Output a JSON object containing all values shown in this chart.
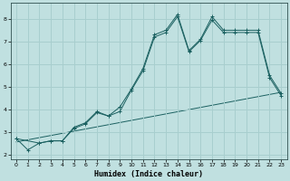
{
  "xlabel": "Humidex (Indice chaleur)",
  "bg_color": "#c0e0e0",
  "grid_color": "#a8cece",
  "line_color": "#1a6060",
  "xlim": [
    -0.5,
    23.5
  ],
  "ylim": [
    1.8,
    8.7
  ],
  "xticks": [
    0,
    1,
    2,
    3,
    4,
    5,
    6,
    7,
    8,
    9,
    10,
    11,
    12,
    13,
    14,
    15,
    16,
    17,
    18,
    19,
    20,
    21,
    22,
    23
  ],
  "yticks": [
    2,
    3,
    4,
    5,
    6,
    7,
    8
  ],
  "line1_x": [
    0,
    1,
    2,
    3,
    4,
    5,
    6,
    7,
    8,
    9,
    10,
    11,
    12,
    13,
    14,
    15,
    16,
    17,
    18,
    19,
    20,
    21,
    22,
    23
  ],
  "line1_y": [
    2.7,
    2.2,
    2.5,
    2.6,
    2.6,
    3.2,
    3.4,
    3.9,
    3.7,
    4.1,
    4.9,
    5.8,
    7.3,
    7.5,
    8.2,
    6.6,
    7.1,
    8.1,
    7.5,
    7.5,
    7.5,
    7.5,
    5.5,
    4.7
  ],
  "line2_x": [
    0,
    2,
    3,
    4,
    5,
    6,
    7,
    8,
    9,
    10,
    11,
    12,
    13,
    14,
    15,
    16,
    17,
    18,
    19,
    20,
    21,
    22,
    23
  ],
  "line2_y": [
    2.7,
    2.5,
    2.6,
    2.6,
    3.15,
    3.35,
    3.85,
    3.7,
    3.9,
    4.85,
    5.7,
    7.2,
    7.4,
    8.1,
    6.55,
    7.05,
    7.95,
    7.4,
    7.4,
    7.4,
    7.4,
    5.4,
    4.6
  ],
  "line3_x": [
    0,
    23
  ],
  "line3_y": [
    2.55,
    4.75
  ]
}
